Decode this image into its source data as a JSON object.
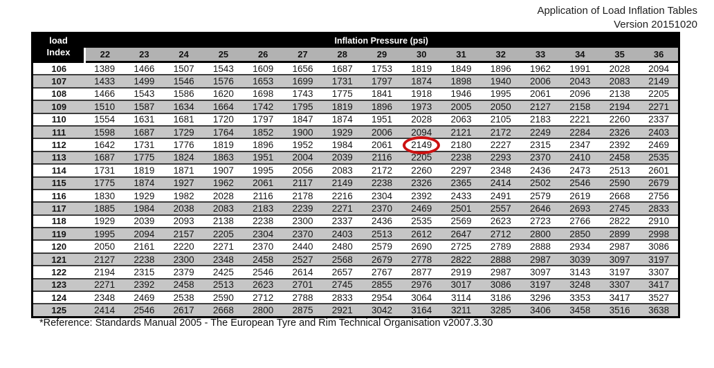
{
  "page": {
    "title_line1": "Application of Load Inflation Tables",
    "title_line2": "Version 20151020",
    "footer": "*Reference: Standards Manual 2005 - The European Tyre and Rim Technical Organisation v2007.3.30"
  },
  "table": {
    "corner_header": {
      "line1": "load",
      "line2": "Index"
    },
    "group_header": "Inflation Pressure (psi)",
    "pressure_columns": [
      "22",
      "23",
      "24",
      "25",
      "26",
      "27",
      "28",
      "29",
      "30",
      "31",
      "32",
      "33",
      "34",
      "35",
      "36"
    ],
    "rows": [
      {
        "load_index": "106",
        "values": [
          "1389",
          "1466",
          "1507",
          "1543",
          "1609",
          "1656",
          "1687",
          "1753",
          "1819",
          "1849",
          "1896",
          "1962",
          "1991",
          "2028",
          "2094"
        ]
      },
      {
        "load_index": "107",
        "values": [
          "1433",
          "1499",
          "1546",
          "1576",
          "1653",
          "1699",
          "1731",
          "1797",
          "1874",
          "1898",
          "1940",
          "2006",
          "2043",
          "2083",
          "2149"
        ]
      },
      {
        "load_index": "108",
        "values": [
          "1466",
          "1543",
          "1586",
          "1620",
          "1698",
          "1743",
          "1775",
          "1841",
          "1918",
          "1946",
          "1995",
          "2061",
          "2096",
          "2138",
          "2205"
        ]
      },
      {
        "load_index": "109",
        "values": [
          "1510",
          "1587",
          "1634",
          "1664",
          "1742",
          "1795",
          "1819",
          "1896",
          "1973",
          "2005",
          "2050",
          "2127",
          "2158",
          "2194",
          "2271"
        ]
      },
      {
        "load_index": "110",
        "values": [
          "1554",
          "1631",
          "1681",
          "1720",
          "1797",
          "1847",
          "1874",
          "1951",
          "2028",
          "2063",
          "2105",
          "2183",
          "2221",
          "2260",
          "2337"
        ]
      },
      {
        "load_index": "111",
        "values": [
          "1598",
          "1687",
          "1729",
          "1764",
          "1852",
          "1900",
          "1929",
          "2006",
          "2094",
          "2121",
          "2172",
          "2249",
          "2284",
          "2326",
          "2403"
        ]
      },
      {
        "load_index": "112",
        "values": [
          "1642",
          "1731",
          "1776",
          "1819",
          "1896",
          "1952",
          "1984",
          "2061",
          "2149",
          "2180",
          "2227",
          "2315",
          "2347",
          "2392",
          "2469"
        ]
      },
      {
        "load_index": "113",
        "values": [
          "1687",
          "1775",
          "1824",
          "1863",
          "1951",
          "2004",
          "2039",
          "2116",
          "2205",
          "2238",
          "2293",
          "2370",
          "2410",
          "2458",
          "2535"
        ]
      },
      {
        "load_index": "114",
        "values": [
          "1731",
          "1819",
          "1871",
          "1907",
          "1995",
          "2056",
          "2083",
          "2172",
          "2260",
          "2297",
          "2348",
          "2436",
          "2473",
          "2513",
          "2601"
        ]
      },
      {
        "load_index": "115",
        "values": [
          "1775",
          "1874",
          "1927",
          "1962",
          "2061",
          "2117",
          "2149",
          "2238",
          "2326",
          "2365",
          "2414",
          "2502",
          "2546",
          "2590",
          "2679"
        ]
      },
      {
        "load_index": "116",
        "values": [
          "1830",
          "1929",
          "1982",
          "2028",
          "2116",
          "2178",
          "2216",
          "2304",
          "2392",
          "2433",
          "2491",
          "2579",
          "2619",
          "2668",
          "2756"
        ]
      },
      {
        "load_index": "117",
        "values": [
          "1885",
          "1984",
          "2038",
          "2083",
          "2183",
          "2239",
          "2271",
          "2370",
          "2469",
          "2501",
          "2557",
          "2646",
          "2693",
          "2745",
          "2833"
        ]
      },
      {
        "load_index": "118",
        "values": [
          "1929",
          "2039",
          "2093",
          "2138",
          "2238",
          "2300",
          "2337",
          "2436",
          "2535",
          "2569",
          "2623",
          "2723",
          "2766",
          "2822",
          "2910"
        ]
      },
      {
        "load_index": "119",
        "values": [
          "1995",
          "2094",
          "2157",
          "2205",
          "2304",
          "2370",
          "2403",
          "2513",
          "2612",
          "2647",
          "2712",
          "2800",
          "2850",
          "2899",
          "2998"
        ]
      },
      {
        "load_index": "120",
        "values": [
          "2050",
          "2161",
          "2220",
          "2271",
          "2370",
          "2440",
          "2480",
          "2579",
          "2690",
          "2725",
          "2789",
          "2888",
          "2934",
          "2987",
          "3086"
        ]
      },
      {
        "load_index": "121",
        "values": [
          "2127",
          "2238",
          "2300",
          "2348",
          "2458",
          "2527",
          "2568",
          "2679",
          "2778",
          "2822",
          "2888",
          "2987",
          "3039",
          "3097",
          "3197"
        ]
      },
      {
        "load_index": "122",
        "values": [
          "2194",
          "2315",
          "2379",
          "2425",
          "2546",
          "2614",
          "2657",
          "2767",
          "2877",
          "2919",
          "2987",
          "3097",
          "3143",
          "3197",
          "3307"
        ]
      },
      {
        "load_index": "123",
        "values": [
          "2271",
          "2392",
          "2458",
          "2513",
          "2623",
          "2701",
          "2745",
          "2855",
          "2976",
          "3017",
          "3086",
          "3197",
          "3248",
          "3307",
          "3417"
        ]
      },
      {
        "load_index": "124",
        "values": [
          "2348",
          "2469",
          "2538",
          "2590",
          "2712",
          "2788",
          "2833",
          "2954",
          "3064",
          "3114",
          "3186",
          "3296",
          "3353",
          "3417",
          "3527"
        ]
      },
      {
        "load_index": "125",
        "values": [
          "2414",
          "2546",
          "2617",
          "2668",
          "2800",
          "2875",
          "2921",
          "3042",
          "3164",
          "3211",
          "3285",
          "3406",
          "3458",
          "3516",
          "3638"
        ]
      }
    ],
    "highlight": {
      "load_index": "112",
      "pressure": "30",
      "value": "2149",
      "color": "#cc1111"
    }
  }
}
